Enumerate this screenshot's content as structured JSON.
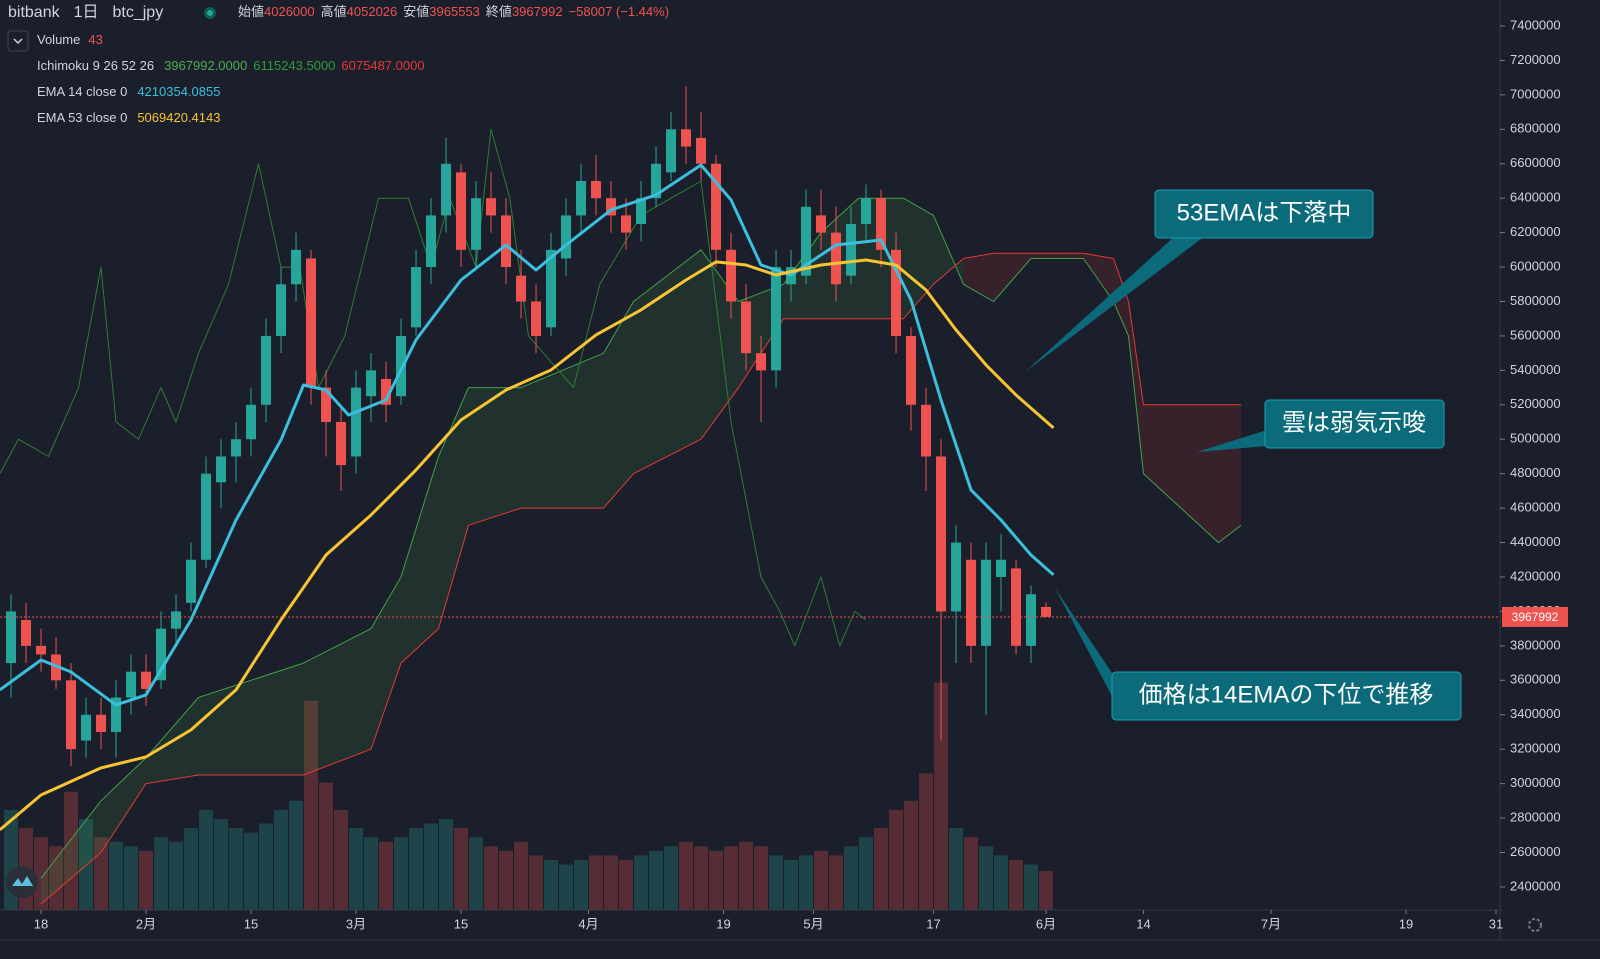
{
  "header": {
    "symbol": "bitbank",
    "interval": "1日",
    "pair": "btc_jpy",
    "open_label": "始値",
    "high_label": "高値",
    "low_label": "安値",
    "close_label": "終値",
    "change": "−58007 (−1.44%)"
  },
  "legend": {
    "volume": "Volume",
    "ichimoku": "Ichimoku 9 26 52 26",
    "ichimoku_values": [
      "3967992.0000",
      "6115243.5000",
      "6075487.0000"
    ]
  },
  "annotations": [
    "53EMAは下落中",
    "雲は弱気示唆",
    "価格は14EMAの下位で推移"
  ],
  "chart_data": {
    "type": "candlestick",
    "up_color": "#26a69a",
    "down_color": "#ef5350",
    "x": [
      -4,
      -2,
      0,
      2,
      4,
      6,
      8,
      10,
      12,
      14,
      16,
      18,
      20,
      22,
      24,
      26,
      28,
      30,
      32,
      34,
      36,
      38,
      40,
      42,
      44,
      46,
      48,
      50,
      52,
      54,
      56,
      58,
      60,
      62,
      64,
      66,
      68,
      70,
      72,
      74,
      76,
      78,
      80,
      82,
      84,
      86,
      88,
      90,
      92,
      94,
      96,
      98,
      100,
      102,
      104,
      106,
      108,
      110,
      112,
      114,
      116,
      118,
      120,
      122,
      124,
      126,
      128,
      130,
      132,
      134
    ],
    "candles": [
      [
        3700000,
        4100000,
        3500000,
        4000000
      ],
      [
        3950000,
        4050000,
        3700000,
        3800000
      ],
      [
        3800000,
        3900000,
        3650000,
        3750000
      ],
      [
        3750000,
        3850000,
        3550000,
        3600000
      ],
      [
        3600000,
        3700000,
        3100000,
        3200000
      ],
      [
        3250000,
        3500000,
        3150000,
        3400000
      ],
      [
        3400000,
        3500000,
        3200000,
        3300000
      ],
      [
        3300000,
        3600000,
        3150000,
        3500000
      ],
      [
        3500000,
        3750000,
        3400000,
        3650000
      ],
      [
        3650000,
        3750000,
        3450000,
        3550000
      ],
      [
        3600000,
        4000000,
        3550000,
        3900000
      ],
      [
        3900000,
        4100000,
        3800000,
        4000000
      ],
      [
        4050000,
        4400000,
        4000000,
        4300000
      ],
      [
        4300000,
        4900000,
        4250000,
        4800000
      ],
      [
        4750000,
        5000000,
        4600000,
        4900000
      ],
      [
        4900000,
        5100000,
        4750000,
        5000000
      ],
      [
        5000000,
        5300000,
        4900000,
        5200000
      ],
      [
        5200000,
        5700000,
        5100000,
        5600000
      ],
      [
        5600000,
        6000000,
        5500000,
        5900000
      ],
      [
        5900000,
        6200000,
        5800000,
        6100000
      ],
      [
        6050000,
        6100000,
        5200000,
        5300000
      ],
      [
        5300000,
        5400000,
        4900000,
        5100000
      ],
      [
        5100000,
        5200000,
        4700000,
        4850000
      ],
      [
        4900000,
        5400000,
        4800000,
        5300000
      ],
      [
        5250000,
        5500000,
        5100000,
        5400000
      ],
      [
        5350000,
        5450000,
        5100000,
        5200000
      ],
      [
        5250000,
        5700000,
        5200000,
        5600000
      ],
      [
        5650000,
        6100000,
        5600000,
        6000000
      ],
      [
        6000000,
        6400000,
        5900000,
        6300000
      ],
      [
        6300000,
        6750000,
        6200000,
        6600000
      ],
      [
        6550000,
        6600000,
        6000000,
        6100000
      ],
      [
        6100000,
        6500000,
        6000000,
        6400000
      ],
      [
        6400000,
        6550000,
        6200000,
        6300000
      ],
      [
        6300000,
        6400000,
        5900000,
        6000000
      ],
      [
        5950000,
        6100000,
        5700000,
        5800000
      ],
      [
        5800000,
        5900000,
        5500000,
        5600000
      ],
      [
        5650000,
        6200000,
        5600000,
        6100000
      ],
      [
        6050000,
        6400000,
        5950000,
        6300000
      ],
      [
        6300000,
        6600000,
        6200000,
        6500000
      ],
      [
        6500000,
        6650000,
        6300000,
        6400000
      ],
      [
        6400000,
        6500000,
        6200000,
        6300000
      ],
      [
        6300000,
        6400000,
        6100000,
        6200000
      ],
      [
        6250000,
        6500000,
        6150000,
        6400000
      ],
      [
        6400000,
        6700000,
        6350000,
        6600000
      ],
      [
        6550000,
        6900000,
        6500000,
        6800000
      ],
      [
        6800000,
        7050000,
        6600000,
        6700000
      ],
      [
        6750000,
        6900000,
        6500000,
        6600000
      ],
      [
        6600000,
        6650000,
        6000000,
        6100000
      ],
      [
        6100000,
        6200000,
        5700000,
        5800000
      ],
      [
        5800000,
        5900000,
        5400000,
        5500000
      ],
      [
        5500000,
        5600000,
        5100000,
        5400000
      ],
      [
        5400000,
        6100000,
        5300000,
        6000000
      ],
      [
        5900000,
        6100000,
        5800000,
        6000000
      ],
      [
        5950000,
        6450000,
        5900000,
        6350000
      ],
      [
        6300000,
        6450000,
        6100000,
        6200000
      ],
      [
        6200000,
        6350000,
        5800000,
        5900000
      ],
      [
        5950000,
        6350000,
        5900000,
        6250000
      ],
      [
        6250000,
        6480000,
        6150000,
        6400000
      ],
      [
        6400000,
        6450000,
        6000000,
        6100000
      ],
      [
        6100000,
        6200000,
        5500000,
        5600000
      ],
      [
        5600000,
        5650000,
        5050000,
        5200000
      ],
      [
        5200000,
        5300000,
        4700000,
        4900000
      ],
      [
        4900000,
        5000000,
        3250000,
        4000000
      ],
      [
        4000000,
        4500000,
        3700000,
        4400000
      ],
      [
        4300000,
        4400000,
        3700000,
        3800000
      ],
      [
        3800000,
        4400000,
        3400000,
        4300000
      ],
      [
        4200000,
        4450000,
        4000000,
        4300000
      ],
      [
        4250000,
        4300000,
        3750000,
        3800000
      ],
      [
        3800000,
        4150000,
        3700000,
        4100000
      ],
      [
        4026000,
        4052026,
        3965553,
        3967992
      ]
    ],
    "volume": [
      110,
      90,
      80,
      70,
      130,
      100,
      80,
      75,
      70,
      65,
      80,
      75,
      90,
      110,
      100,
      90,
      85,
      95,
      110,
      120,
      230,
      140,
      110,
      90,
      80,
      75,
      80,
      90,
      95,
      100,
      90,
      80,
      70,
      65,
      75,
      60,
      55,
      50,
      55,
      60,
      60,
      55,
      60,
      65,
      70,
      75,
      70,
      65,
      70,
      75,
      70,
      60,
      55,
      60,
      65,
      60,
      70,
      80,
      90,
      110,
      120,
      150,
      250,
      90,
      80,
      70,
      60,
      55,
      50,
      43
    ],
    "volume_lim": [
      0,
      1000
    ],
    "series": [
      {
        "name": "EMA 14 close 0",
        "last_label": "4210354.0855",
        "color": "#3bbfdc",
        "x": [
          -5.5,
          0,
          4,
          10,
          14,
          20,
          26,
          32,
          35,
          38,
          41,
          46,
          50,
          56,
          62,
          66,
          70,
          76,
          82,
          88,
          92,
          96,
          100,
          106,
          112,
          116,
          120,
          124,
          128,
          132,
          135
        ],
        "values": [
          3544000,
          3718000,
          3649000,
          3457000,
          3515000,
          3951000,
          4531000,
          4996000,
          5315000,
          5286000,
          5141000,
          5228000,
          5577000,
          5925000,
          6128000,
          5983000,
          6128000,
          6332000,
          6419000,
          6593000,
          6390000,
          6012000,
          5954000,
          6128000,
          6157000,
          5809000,
          5228000,
          4706000,
          4531000,
          4328000,
          4212000
        ]
      },
      {
        "name": "EMA 53 close 0",
        "last_label": "5069420.4143",
        "color": "#f7c434",
        "x": [
          -5.5,
          0,
          8,
          14,
          20,
          26,
          32,
          38,
          44,
          50,
          56,
          62,
          68,
          74,
          80,
          86,
          90,
          94,
          98,
          104,
          110,
          114,
          118,
          122,
          126,
          130,
          135
        ],
        "values": [
          2731000,
          2934000,
          3091000,
          3155000,
          3312000,
          3544000,
          3951000,
          4328000,
          4560000,
          4822000,
          5112000,
          5286000,
          5402000,
          5606000,
          5751000,
          5925000,
          6030000,
          6012000,
          5954000,
          6012000,
          6041000,
          6012000,
          5867000,
          5635000,
          5432000,
          5257000,
          5066000
        ]
      }
    ],
    "cloud": {
      "x": [
        0,
        8,
        14,
        21,
        28,
        35,
        44,
        48,
        53,
        57,
        64,
        75,
        79,
        88,
        93,
        99,
        104,
        109,
        115,
        119,
        123,
        127,
        132,
        139,
        143,
        145,
        147,
        152,
        157,
        160
      ],
      "span_a": [
        2450000,
        2900000,
        3150000,
        3500000,
        3600000,
        3700000,
        3900000,
        4200000,
        4900000,
        5300000,
        5300000,
        5500000,
        5800000,
        6100000,
        5800000,
        5900000,
        6200000,
        6400000,
        6400000,
        6300000,
        5900000,
        5800000,
        6050000,
        6050000,
        5800000,
        5600000,
        4800000,
        4600000,
        4400000,
        4500000
      ],
      "span_b": [
        2300000,
        2600000,
        3000000,
        3050000,
        3050000,
        3050000,
        3200000,
        3700000,
        3900000,
        4500000,
        4600000,
        4600000,
        4800000,
        5000000,
        5300000,
        5700000,
        5700000,
        5700000,
        5700000,
        5900000,
        6050000,
        6080000,
        6080000,
        6080000,
        6050000,
        5800000,
        5200000,
        5200000,
        5200000,
        5200000
      ],
      "up_color": "#43a047",
      "down_color": "#e53935"
    },
    "lagging": {
      "color": "#2e7d32",
      "x": [
        -5.5,
        -3,
        1,
        5,
        8,
        10,
        13,
        16,
        18,
        21,
        25,
        29,
        32,
        34.5,
        37,
        40.5,
        45,
        49,
        52,
        54.5,
        58,
        60,
        62.5,
        65,
        69,
        71,
        74.5,
        80,
        84,
        88,
        92,
        96,
        98.5,
        100.5,
        104,
        106.5,
        108.5,
        110
      ],
      "values": [
        4800000,
        5000000,
        4900000,
        5300000,
        6000000,
        5100000,
        5000000,
        5300000,
        5100000,
        5500000,
        5900000,
        6600000,
        6000000,
        6000000,
        5300000,
        5600000,
        6400000,
        6400000,
        6000000,
        6400000,
        6000000,
        6800000,
        6400000,
        5600000,
        5400000,
        5300000,
        5900000,
        6300000,
        6400000,
        6500000,
        5100000,
        4200000,
        4000000,
        3800000,
        4200000,
        3800000,
        4000000,
        3950000
      ]
    },
    "xlim": [
      -5.47,
      194.53
    ],
    "xticks": [
      {
        "value": 0,
        "label": "18"
      },
      {
        "value": 14,
        "label": "2月"
      },
      {
        "value": 28,
        "label": "15"
      },
      {
        "value": 42,
        "label": "3月"
      },
      {
        "value": 56,
        "label": "15"
      },
      {
        "value": 73,
        "label": "4月"
      },
      {
        "value": 91,
        "label": "19"
      },
      {
        "value": 103,
        "label": "5月"
      },
      {
        "value": 119,
        "label": "17"
      },
      {
        "value": 134,
        "label": "6月"
      },
      {
        "value": 147,
        "label": "14"
      },
      {
        "value": 164,
        "label": "7月"
      },
      {
        "value": 182,
        "label": "19"
      },
      {
        "value": 194,
        "label": "31"
      }
    ],
    "ylim": [
      2266000,
      7551000
    ],
    "yticks": [
      2400000,
      2600000,
      2800000,
      3000000,
      3200000,
      3400000,
      3600000,
      3800000,
      4000000,
      4200000,
      4400000,
      4600000,
      4800000,
      5000000,
      5200000,
      5400000,
      5600000,
      5800000,
      6000000,
      6200000,
      6400000,
      6600000,
      6800000,
      7000000,
      7200000,
      7400000
    ]
  }
}
